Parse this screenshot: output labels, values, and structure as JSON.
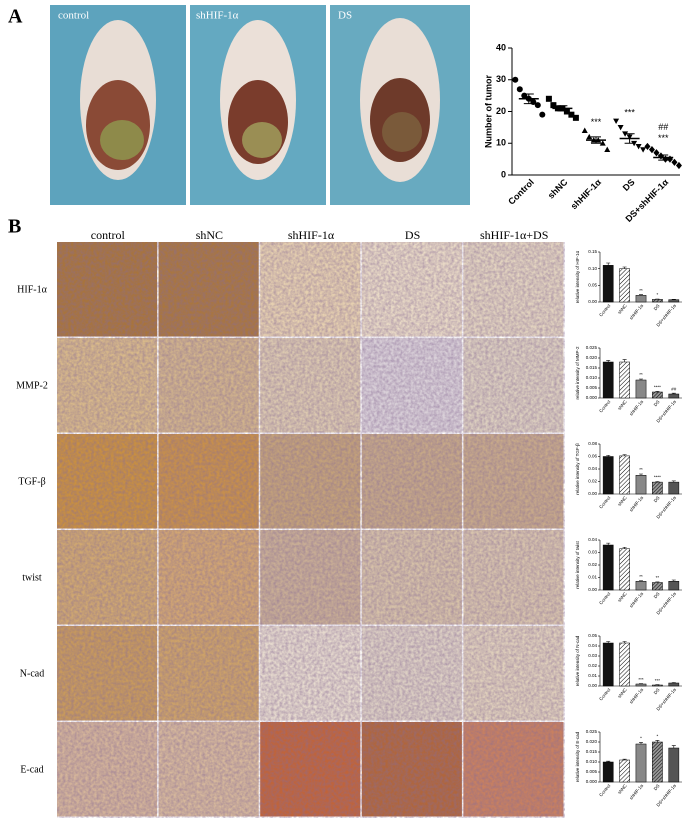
{
  "panel_a": {
    "label": "A",
    "photo_labels": [
      "control",
      "shHIF-1α",
      "DS"
    ]
  },
  "panel_b": {
    "label": "B",
    "column_labels": [
      "control",
      "shNC",
      "shHIF-1α",
      "DS",
      "shHIF-1α+DS"
    ],
    "row_labels": [
      "HIF-1α",
      "MMP-2",
      "TGF-β",
      "twist",
      "N-cad",
      "E-cad"
    ]
  },
  "chart_data": [
    {
      "type": "dot",
      "ylabel": "Number of tumor",
      "categories": [
        "Control",
        "shNC",
        "shHIF-1α",
        "DS",
        "DS+shHIF-1α"
      ],
      "markers": [
        "circle",
        "square",
        "triangle",
        "triangle-down",
        "diamond"
      ],
      "points": [
        [
          30,
          27,
          25,
          24,
          23,
          22,
          19
        ],
        [
          24,
          22,
          21,
          21,
          20,
          19,
          18
        ],
        [
          14,
          12,
          11,
          11,
          10,
          8
        ],
        [
          17,
          15,
          13,
          12,
          10,
          9,
          8
        ],
        [
          9,
          8,
          7,
          6,
          5,
          5,
          4,
          3
        ]
      ],
      "means": [
        24,
        21,
        11,
        11.5,
        5.5
      ],
      "errors": [
        1.5,
        0.8,
        1,
        1.5,
        0.8
      ],
      "annotations": [
        null,
        null,
        [
          "***"
        ],
        [
          "***"
        ],
        [
          "##",
          "***"
        ]
      ],
      "ylim": [
        0,
        40
      ],
      "yticks": [
        0,
        10,
        20,
        30,
        40
      ],
      "color": "#000000"
    },
    {
      "type": "bar",
      "ylabel": "relative intensity of HIF-1α",
      "categories": [
        "Control",
        "shNC",
        "shHIF-1α",
        "DS",
        "DS+shHIF-1α"
      ],
      "values": [
        0.11,
        0.1,
        0.02,
        0.008,
        0.007
      ],
      "errors": [
        0.007,
        0.005,
        0.002,
        0.001,
        0.001
      ],
      "annotations": [
        null,
        null,
        "**",
        "*",
        null
      ],
      "ylim": [
        0,
        0.15
      ],
      "yticks": [
        {
          "value": 0,
          "label": "0.00"
        },
        0.05,
        {
          "value": 0.1,
          "label": "0.10"
        },
        0.15
      ],
      "colors": [
        "#111111",
        "#ffffff",
        "#888888",
        "#444444",
        "#555555"
      ],
      "hatch": [
        false,
        true,
        false,
        true,
        false
      ]
    },
    {
      "type": "bar",
      "ylabel": "relative intensity of MMP-2",
      "categories": [
        "Control",
        "shNC",
        "shHIF-1α",
        "DS",
        "DS+shHIF-1α"
      ],
      "values": [
        0.018,
        0.018,
        0.009,
        0.003,
        0.002
      ],
      "errors": [
        0.0008,
        0.0012,
        0.0005,
        0.0003,
        0.0004
      ],
      "annotations": [
        null,
        null,
        "**",
        "****",
        "##"
      ],
      "ylim": [
        0,
        0.025
      ],
      "yticks": [
        {
          "value": 0,
          "label": "0.000"
        },
        0.005,
        {
          "value": 0.01,
          "label": "0.010"
        },
        0.015,
        {
          "value": 0.02,
          "label": "0.020"
        },
        0.025
      ],
      "colors": [
        "#111111",
        "#ffffff",
        "#888888",
        "#444444",
        "#555555"
      ],
      "hatch": [
        false,
        true,
        false,
        true,
        false
      ]
    },
    {
      "type": "bar",
      "ylabel": "relative intensity of TGF-β",
      "categories": [
        "Control",
        "shNC",
        "shHIF-1α",
        "DS",
        "DS+shHIF-1α"
      ],
      "values": [
        0.06,
        0.061,
        0.03,
        0.019,
        0.019
      ],
      "errors": [
        0.002,
        0.002,
        0.002,
        0.001,
        0.002
      ],
      "annotations": [
        null,
        null,
        "**",
        "****",
        null
      ],
      "ylim": [
        0,
        0.08
      ],
      "yticks": [
        {
          "value": 0,
          "label": "0.00"
        },
        0.02,
        0.04,
        0.06,
        0.08
      ],
      "colors": [
        "#111111",
        "#ffffff",
        "#888888",
        "#444444",
        "#555555"
      ],
      "hatch": [
        false,
        true,
        false,
        true,
        false
      ]
    },
    {
      "type": "bar",
      "ylabel": "relative intensity of twist",
      "categories": [
        "Control",
        "shNC",
        "shHIF-1α",
        "DS",
        "DS+shHIF-1α"
      ],
      "values": [
        0.036,
        0.033,
        0.007,
        0.006,
        0.007
      ],
      "errors": [
        0.0015,
        0.0012,
        0.0005,
        0.0005,
        0.001
      ],
      "annotations": [
        null,
        null,
        "**",
        "**",
        null
      ],
      "ylim": [
        0,
        0.04
      ],
      "yticks": [
        {
          "value": 0,
          "label": "0.00"
        },
        0.01,
        0.02,
        0.03,
        0.04
      ],
      "colors": [
        "#111111",
        "#ffffff",
        "#888888",
        "#444444",
        "#555555"
      ],
      "hatch": [
        false,
        true,
        false,
        true,
        false
      ]
    },
    {
      "type": "bar",
      "ylabel": "relative intensity of N-cad",
      "categories": [
        "Control",
        "shNC",
        "shHIF-1α",
        "DS",
        "DS+shHIF-1α"
      ],
      "values": [
        0.043,
        0.043,
        0.002,
        0.001,
        0.003
      ],
      "errors": [
        0.0015,
        0.0015,
        0.0003,
        0.0003,
        0.0005
      ],
      "annotations": [
        null,
        null,
        "***",
        "***",
        null
      ],
      "ylim": [
        0,
        0.05
      ],
      "yticks": [
        {
          "value": 0,
          "label": "0.00"
        },
        0.01,
        0.02,
        0.03,
        0.04,
        0.05
      ],
      "colors": [
        "#111111",
        "#ffffff",
        "#888888",
        "#444444",
        "#555555"
      ],
      "hatch": [
        false,
        true,
        false,
        true,
        false
      ]
    },
    {
      "type": "bar",
      "ylabel": "relative intensity of E-cad",
      "categories": [
        "Control",
        "shNC",
        "shHIF-1α",
        "DS",
        "DS+shHIF-1α"
      ],
      "values": [
        0.01,
        0.011,
        0.019,
        0.02,
        0.017
      ],
      "errors": [
        0.0004,
        0.0004,
        0.0008,
        0.0008,
        0.0012
      ],
      "annotations": [
        null,
        null,
        "*",
        "*",
        null
      ],
      "ylim": [
        0,
        0.025
      ],
      "yticks": [
        {
          "value": 0,
          "label": "0.000"
        },
        0.005,
        {
          "value": 0.01,
          "label": "0.010"
        },
        0.015,
        {
          "value": 0.02,
          "label": "0.020"
        },
        0.025
      ],
      "colors": [
        "#111111",
        "#ffffff",
        "#888888",
        "#444444",
        "#555555"
      ],
      "hatch": [
        false,
        true,
        false,
        true,
        false
      ]
    }
  ]
}
